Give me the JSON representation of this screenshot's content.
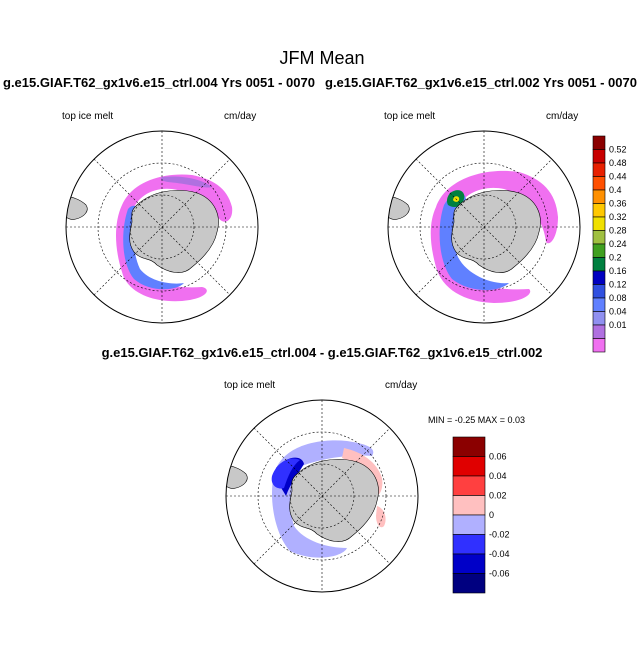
{
  "header": {
    "title": "JFM Mean",
    "left_case": "g.e15.GIAF.T62_gx1v6.e15_ctrl.004  Yrs 0051 - 0070",
    "right_case": "g.e15.GIAF.T62_gx1v6.e15_ctrl.002  Yrs 0051 - 0070",
    "diff_case": "g.e15.GIAF.T62_gx1v6.e15_ctrl.004 - g.e15.GIAF.T62_gx1v6.e15_ctrl.002"
  },
  "panels": {
    "left": {
      "variable": "top ice melt",
      "units": "cm/day"
    },
    "right": {
      "variable": "top ice melt",
      "units": "cm/day"
    },
    "diff": {
      "variable": "top ice melt",
      "units": "cm/day"
    }
  },
  "colorbars": {
    "main": {
      "labels": [
        "0.52",
        "0.48",
        "0.44",
        "0.4",
        "0.36",
        "0.32",
        "0.28",
        "0.24",
        "0.2",
        "0.16",
        "0.12",
        "0.08",
        "0.04",
        "0.01"
      ],
      "colors": [
        "#8b0000",
        "#c80000",
        "#e82000",
        "#ff5000",
        "#ff9000",
        "#ffc800",
        "#f0e000",
        "#a0c040",
        "#40a020",
        "#008040",
        "#0000c0",
        "#3050e0",
        "#6080ff",
        "#9090f0",
        "#b070e0",
        "#f070f0"
      ]
    },
    "diff": {
      "min_max_text": "MIN =  -0.25 MAX =   0.03",
      "labels": [
        "0.06",
        "0.04",
        "0.02",
        "0",
        "-0.02",
        "-0.04",
        "-0.06"
      ],
      "colors": [
        "#8b0000",
        "#e00000",
        "#ff4040",
        "#ffc0c0",
        "#b0b0ff",
        "#3030ff",
        "#0000c8",
        "#000080"
      ]
    }
  },
  "colors": {
    "land": "#c8c8c8",
    "ice_melt_low": "#f070f0",
    "ice_melt_mid": "#6080ff",
    "diff_neg": "#3030ff",
    "diff_pos": "#ffc0c0"
  }
}
